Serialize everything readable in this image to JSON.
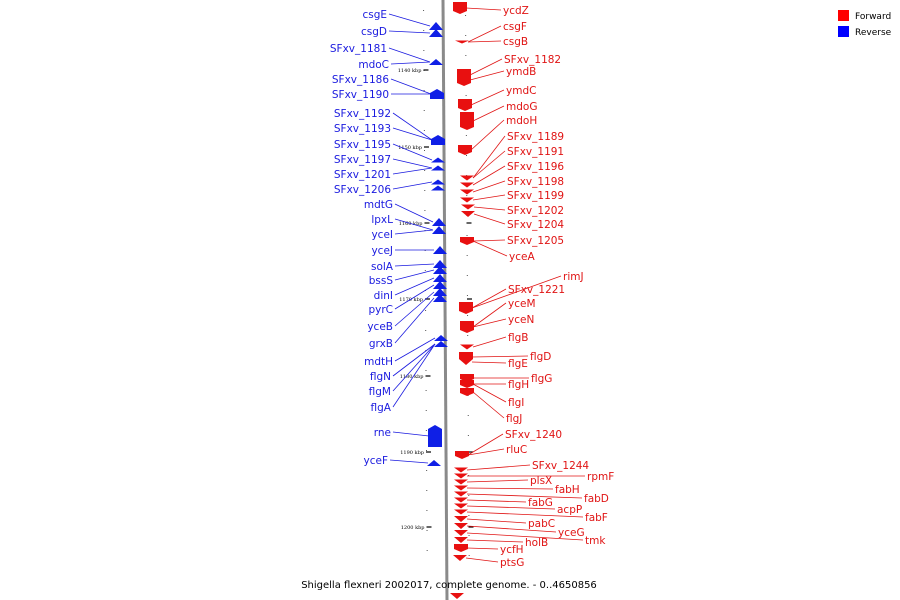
{
  "caption": "Shigella flexneri 2002017, complete genome. - 0..4650856",
  "legend": [
    {
      "label": "Forward",
      "color": "#ff0000"
    },
    {
      "label": "Reverse",
      "color": "#0000ff"
    }
  ],
  "ticks": [
    "1140 kbp",
    "1150 kbp",
    "1160 kbp",
    "1170 kbp",
    "1180 kbp",
    "1190 kbp",
    "1200 kbp"
  ],
  "reverse_genes": [
    "csgE",
    "csgD",
    "SFxv_1181",
    "mdoC",
    "SFxv_1186",
    "SFxv_1190",
    "SFxv_1192",
    "SFxv_1193",
    "SFxv_1195",
    "SFxv_1197",
    "SFxv_1201",
    "SFxv_1206",
    "mdtG",
    "lpxL",
    "yceI",
    "yceJ",
    "solA",
    "bssS",
    "dinI",
    "pyrC",
    "yceB",
    "grxB",
    "mdtH",
    "flgN",
    "flgM",
    "flgA",
    "rne",
    "yceF"
  ],
  "forward_genes": [
    "ycdZ",
    "csgF",
    "csgB",
    "SFxv_1182",
    "ymdB",
    "ymdC",
    "mdoG",
    "mdoH",
    "SFxv_1189",
    "SFxv_1191",
    "SFxv_1196",
    "SFxv_1198",
    "SFxv_1199",
    "SFxv_1202",
    "SFxv_1204",
    "SFxv_1205",
    "yceA",
    "rimJ",
    "SFxv_1221",
    "yceM",
    "yceN",
    "flgB",
    "flgD",
    "flgE",
    "flgG",
    "flgH",
    "flgI",
    "flgJ",
    "SFxv_1240",
    "rluC",
    "SFxv_1244",
    "rpmF",
    "plsX",
    "fabH",
    "fabD",
    "fabG",
    "acpP",
    "fabF",
    "pabC",
    "yceG",
    "tmk",
    "holB",
    "ycfH",
    "ptsG"
  ]
}
